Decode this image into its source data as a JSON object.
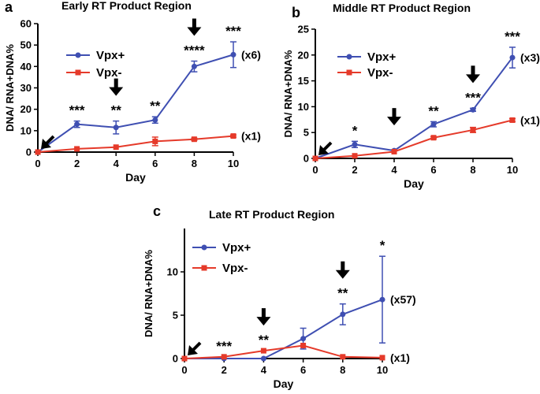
{
  "chart_data": [
    {
      "type": "line",
      "panel_label": "a",
      "title": "Early RT Product  Region",
      "xlabel": "Day",
      "ylabel": "DNA/ RNA+DNA%",
      "x": [
        0,
        2,
        4,
        6,
        8,
        10
      ],
      "xticks": [
        "0",
        "2",
        "4",
        "6",
        "8",
        "10"
      ],
      "yticks": [
        "0",
        "10",
        "20",
        "30",
        "40",
        "50",
        "60"
      ],
      "ylim": [
        0,
        60
      ],
      "series": [
        {
          "name": "Vpx+",
          "color": "#3f4fb2",
          "marker": "circle",
          "values": [
            0,
            13,
            11.5,
            15,
            40,
            45.5
          ],
          "errors": [
            0,
            1.5,
            3,
            1.5,
            2.5,
            6
          ],
          "fold": "(x6)"
        },
        {
          "name": "Vpx-",
          "color": "#e53a2a",
          "marker": "square",
          "values": [
            0,
            1.5,
            2.3,
            5,
            6,
            7.5
          ],
          "errors": [
            0,
            0,
            0,
            2,
            0.5,
            0.5
          ],
          "fold": "(x1)"
        }
      ],
      "significance": [
        {
          "x": 2,
          "label": "***"
        },
        {
          "x": 4,
          "label": "**"
        },
        {
          "x": 6,
          "label": "**"
        },
        {
          "x": 8,
          "label": "****"
        },
        {
          "x": 10,
          "label": "***"
        }
      ],
      "arrows": [
        {
          "x": 0,
          "style": "diagonal"
        },
        {
          "x": 4,
          "style": "down"
        },
        {
          "x": 8,
          "style": "down"
        }
      ]
    },
    {
      "type": "line",
      "panel_label": "b",
      "title": "Middle RT Product  Region",
      "xlabel": "Day",
      "ylabel": "DNA/ RNA+DNA%",
      "x": [
        0,
        2,
        4,
        6,
        8,
        10
      ],
      "xticks": [
        "0",
        "2",
        "4",
        "6",
        "8",
        "10"
      ],
      "yticks": [
        "0",
        "5",
        "10",
        "15",
        "20",
        "25"
      ],
      "ylim": [
        0,
        25
      ],
      "series": [
        {
          "name": "Vpx+",
          "color": "#3f4fb2",
          "marker": "circle",
          "values": [
            0,
            2.7,
            1.5,
            6.6,
            9.4,
            19.5
          ],
          "errors": [
            0,
            0.6,
            0,
            0.5,
            0.3,
            2
          ],
          "fold": "(x3)"
        },
        {
          "name": "Vpx-",
          "color": "#e53a2a",
          "marker": "square",
          "values": [
            0,
            0.5,
            1.3,
            4,
            5.5,
            7.4
          ],
          "errors": [
            0,
            0,
            0,
            0.2,
            0.5,
            0.3
          ],
          "fold": "(x1)"
        }
      ],
      "significance": [
        {
          "x": 2,
          "label": "*"
        },
        {
          "x": 6,
          "label": "**"
        },
        {
          "x": 8,
          "label": "***"
        },
        {
          "x": 10,
          "label": "***"
        }
      ],
      "arrows": [
        {
          "x": 0,
          "style": "diagonal"
        },
        {
          "x": 4,
          "style": "down"
        },
        {
          "x": 8,
          "style": "down"
        }
      ]
    },
    {
      "type": "line",
      "panel_label": "c",
      "title": "Late RT Product  Region",
      "xlabel": "Day",
      "ylabel": "DNA/ RNA+DNA%",
      "x": [
        0,
        2,
        4,
        6,
        8,
        10
      ],
      "xticks": [
        "0",
        "2",
        "4",
        "6",
        "8",
        "10"
      ],
      "yticks": [
        "0",
        "5",
        "10"
      ],
      "ylim": [
        0,
        15
      ],
      "series": [
        {
          "name": "Vpx+",
          "color": "#3f4fb2",
          "marker": "circle",
          "values": [
            0,
            0,
            0,
            2.3,
            5.1,
            6.8
          ],
          "errors": [
            0,
            0,
            0,
            1.2,
            1.2,
            5
          ],
          "fold": "(x57)"
        },
        {
          "name": "Vpx-",
          "color": "#e53a2a",
          "marker": "square",
          "values": [
            0,
            0.2,
            0.9,
            1.5,
            0.2,
            0.1
          ],
          "errors": [
            0,
            0,
            0,
            0,
            0,
            0
          ],
          "fold": "(x1)"
        }
      ],
      "significance": [
        {
          "x": 2,
          "label": "***"
        },
        {
          "x": 4,
          "label": "**"
        },
        {
          "x": 8,
          "label": "**"
        },
        {
          "x": 10,
          "label": "*"
        }
      ],
      "arrows": [
        {
          "x": 0,
          "style": "diagonal"
        },
        {
          "x": 4,
          "style": "down"
        },
        {
          "x": 8,
          "style": "down"
        }
      ]
    }
  ]
}
